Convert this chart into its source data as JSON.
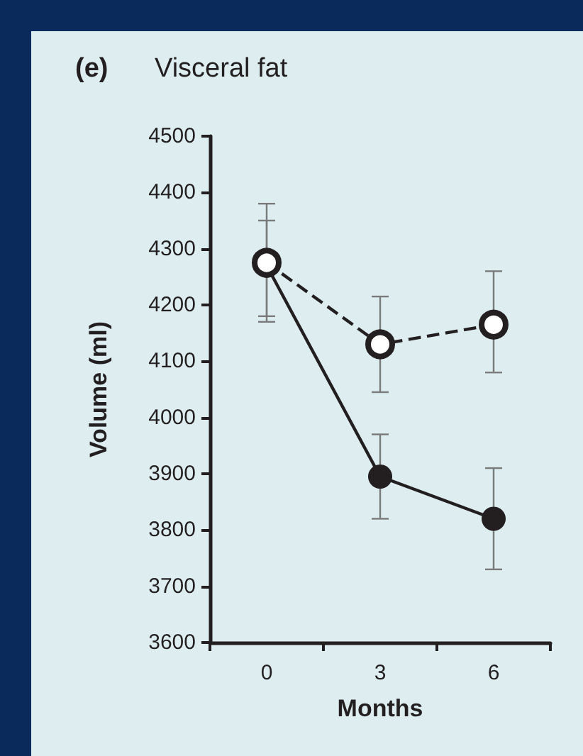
{
  "chart_data": {
    "type": "line",
    "title": "(e)",
    "subtitle": "Visceral fat",
    "xlabel": "Months",
    "ylabel": "Volume (ml)",
    "categories": [
      "0",
      "3",
      "6"
    ],
    "series": [
      {
        "color": "#231f20",
        "values": [
          4270,
          3895,
          3820
        ],
        "errors": [
          [
            4170,
            4380
          ],
          [
            3820,
            3970
          ],
          [
            3730,
            3910
          ]
        ],
        "line_style": "solid"
      },
      {
        "color": "#231f20",
        "values": [
          4275,
          4130,
          4165
        ],
        "errors": [
          [
            4180,
            4350
          ],
          [
            4045,
            4215
          ],
          [
            4080,
            4260
          ]
        ],
        "line_style": "dashed"
      }
    ],
    "ylim": [
      3600,
      4500
    ],
    "yticks": [
      3600,
      3700,
      3800,
      3900,
      4000,
      4100,
      4200,
      4300,
      4400,
      4500
    ],
    "marker": "circle",
    "grid": false
  }
}
